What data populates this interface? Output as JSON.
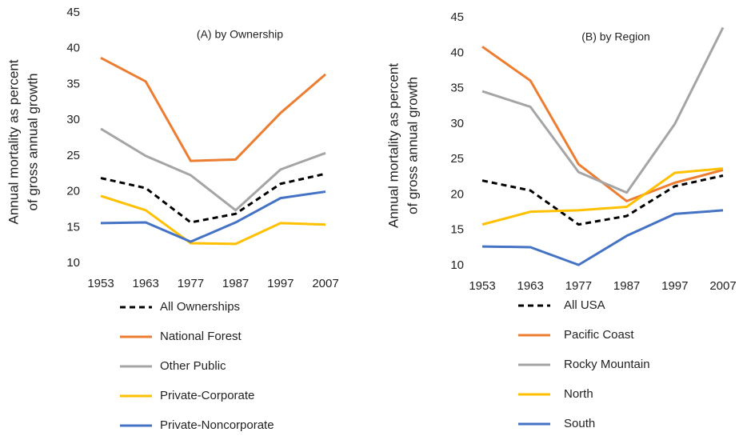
{
  "chart_data": [
    {
      "type": "line",
      "title": "(A) by Ownership",
      "ylabel_lines": [
        "Annual mortality as percent",
        "of gross annual growth"
      ],
      "categories": [
        "1953",
        "1963",
        "1977",
        "1987",
        "1997",
        "2007"
      ],
      "ylim": [
        10,
        45
      ],
      "yticks": [
        10,
        15,
        20,
        25,
        30,
        35,
        40,
        45
      ],
      "series": [
        {
          "name": "All Ownerships",
          "color": "#000000",
          "dashed": true,
          "values": [
            21.9,
            20.5,
            15.7,
            16.9,
            21.1,
            22.5
          ]
        },
        {
          "name": "National Forest",
          "color": "#ED7D31",
          "values": [
            38.7,
            35.4,
            24.3,
            24.5,
            31.0,
            36.4
          ]
        },
        {
          "name": "Other Public",
          "color": "#A5A5A5",
          "values": [
            28.8,
            25.0,
            22.3,
            17.4,
            23.1,
            25.4
          ]
        },
        {
          "name": "Private-Corporate",
          "color": "#FFC000",
          "values": [
            19.4,
            17.4,
            12.8,
            12.7,
            15.6,
            15.4
          ]
        },
        {
          "name": "Private-Noncorporate",
          "color": "#4472C4",
          "values": [
            15.6,
            15.7,
            13.0,
            15.7,
            19.1,
            20.0
          ]
        }
      ]
    },
    {
      "type": "line",
      "title": "(B) by Region",
      "ylabel_lines": [
        "Annual mortality as percent",
        "of gross annual growth"
      ],
      "categories": [
        "1953",
        "1963",
        "1977",
        "1987",
        "1997",
        "2007"
      ],
      "ylim": [
        10,
        45
      ],
      "yticks": [
        10,
        15,
        20,
        25,
        30,
        35,
        40,
        45
      ],
      "series": [
        {
          "name": "All USA",
          "color": "#000000",
          "dashed": true,
          "values": [
            22.0,
            20.6,
            15.8,
            17.0,
            21.2,
            22.7
          ]
        },
        {
          "name": "Pacific Coast",
          "color": "#ED7D31",
          "values": [
            40.9,
            36.1,
            24.3,
            19.1,
            21.7,
            23.5
          ]
        },
        {
          "name": "Rocky Mountain",
          "color": "#A5A5A5",
          "values": [
            34.6,
            32.4,
            23.2,
            20.3,
            30.0,
            43.6
          ]
        },
        {
          "name": "North",
          "color": "#FFC000",
          "values": [
            15.8,
            17.6,
            17.8,
            18.3,
            23.1,
            23.7
          ]
        },
        {
          "name": "South",
          "color": "#4472C4",
          "values": [
            12.7,
            12.6,
            10.1,
            14.2,
            17.3,
            17.8
          ]
        }
      ]
    }
  ]
}
